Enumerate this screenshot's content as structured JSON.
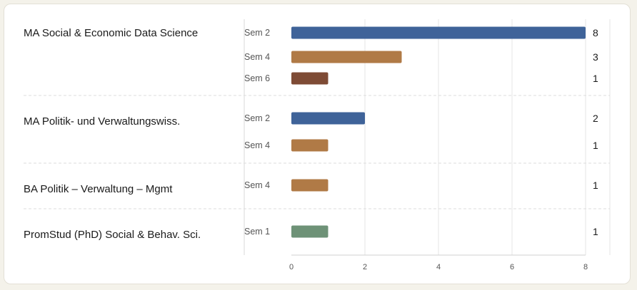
{
  "chart_data": {
    "type": "bar",
    "orientation": "horizontal",
    "grid": true,
    "xlim": [
      0,
      8
    ],
    "x_ticks": [
      "0",
      "2",
      "4",
      "6",
      "8"
    ],
    "colors": {
      "Sem 1": "#6e9277",
      "Sem 2": "#3f6399",
      "Sem 4": "#b07a46",
      "Sem 6": "#7e4b35"
    },
    "groups": [
      {
        "program": "MA Social & Economic Data Science",
        "bars": [
          {
            "semester": "Sem 2",
            "value": 8,
            "label": "8"
          },
          {
            "semester": "Sem 4",
            "value": 3,
            "label": "3"
          },
          {
            "semester": "Sem 6",
            "value": 1,
            "label": "1"
          }
        ]
      },
      {
        "program": "MA Politik- und Verwaltungswiss.",
        "bars": [
          {
            "semester": "Sem 2",
            "value": 2,
            "label": "2"
          },
          {
            "semester": "Sem 4",
            "value": 1,
            "label": "1"
          }
        ]
      },
      {
        "program": "BA Politik – Verwaltung – Mgmt",
        "bars": [
          {
            "semester": "Sem 4",
            "value": 1,
            "label": "1"
          }
        ]
      },
      {
        "program": "PromStud (PhD) Social & Behav. Sci.",
        "bars": [
          {
            "semester": "Sem 1",
            "value": 1,
            "label": "1"
          }
        ]
      }
    ]
  }
}
